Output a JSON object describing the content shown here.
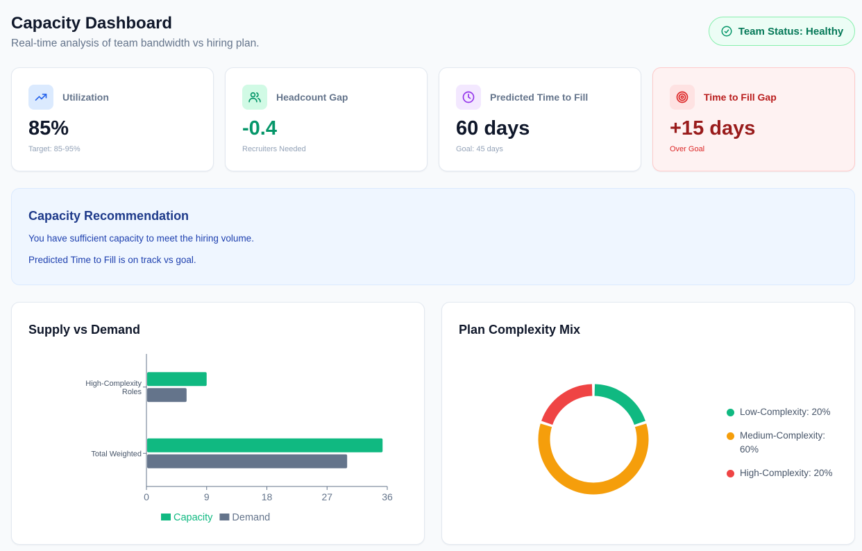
{
  "header": {
    "title": "Capacity Dashboard",
    "subtitle": "Real-time analysis of team bandwidth vs hiring plan.",
    "status": "Team Status: Healthy"
  },
  "kpis": [
    {
      "label": "Utilization",
      "value": "85%",
      "sub": "Target: 85-95%",
      "icon": "trending-up-icon",
      "value_color": "#0f172a"
    },
    {
      "label": "Headcount Gap",
      "value": "-0.4",
      "sub": "Recruiters Needed",
      "icon": "users-icon",
      "value_color": "#059669"
    },
    {
      "label": "Predicted Time to Fill",
      "value": "60 days",
      "sub": "Goal: 45 days",
      "icon": "clock-icon",
      "value_color": "#0f172a"
    },
    {
      "label": "Time to Fill Gap",
      "value": "+15 days",
      "sub": "Over Goal",
      "icon": "target-icon",
      "value_color": "#991b1b"
    }
  ],
  "recommendation": {
    "title": "Capacity Recommendation",
    "lines": [
      "You have sufficient capacity to meet the hiring volume.",
      "Predicted Time to Fill is on track vs goal."
    ]
  },
  "colors": {
    "capacity": "#10b981",
    "demand": "#64748b",
    "low": "#10b981",
    "medium": "#f59e0b",
    "high": "#ef4444"
  },
  "chart_data": [
    {
      "type": "bar",
      "orientation": "horizontal",
      "title": "Supply vs Demand",
      "categories": [
        "High-Complexity Roles",
        "Total Weighted"
      ],
      "series": [
        {
          "name": "Capacity",
          "values": [
            9,
            35.3
          ]
        },
        {
          "name": "Demand",
          "values": [
            6,
            30
          ]
        }
      ],
      "xlim": [
        0,
        36
      ],
      "xticks": [
        0,
        9,
        18,
        27,
        36
      ],
      "legend": "bottom"
    },
    {
      "type": "pie",
      "variant": "donut",
      "title": "Plan Complexity Mix",
      "labels": [
        "Low-Complexity",
        "Medium-Complexity",
        "High-Complexity"
      ],
      "values": [
        20,
        60,
        20
      ],
      "legend_labels": [
        "Low-Complexity: 20%",
        "Medium-Complexity: 60%",
        "High-Complexity: 20%"
      ],
      "legend": "right"
    }
  ]
}
